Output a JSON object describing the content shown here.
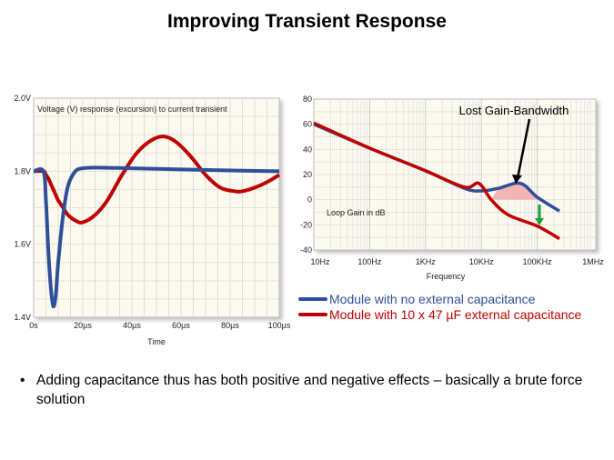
{
  "title": "Improving Transient Response",
  "colors": {
    "blue": "#2f4f9a",
    "red": "#c00000",
    "fill": "#f4b4b4",
    "green": "#1e9e3a",
    "bg": "#fcfaee"
  },
  "chart_data": [
    {
      "type": "line",
      "title": "Voltage (V) response (excursion) to current transient",
      "xlabel": "Time",
      "ylabel": "",
      "xlim": [
        0,
        100
      ],
      "ylim": [
        1.4,
        2.0
      ],
      "grid": true,
      "xticks": [
        "0s",
        "20µs",
        "40µs",
        "60µs",
        "80µs",
        "100µs"
      ],
      "yticks": [
        "1.4V",
        "1.6V",
        "1.8V",
        "2.0V"
      ],
      "x": [
        0,
        4,
        5,
        6,
        7,
        8,
        9,
        10,
        12,
        14,
        17,
        20,
        25,
        40,
        60,
        80,
        100
      ],
      "series": [
        {
          "color": "#2f4f9a",
          "values": [
            1.8,
            1.8,
            1.72,
            1.58,
            1.48,
            1.43,
            1.46,
            1.55,
            1.68,
            1.76,
            1.8,
            1.808,
            1.81,
            1.808,
            1.805,
            1.802,
            1.8
          ]
        },
        {
          "color": "#c00000",
          "values": [
            1.8,
            1.8,
            1.79,
            1.78,
            1.765,
            1.75,
            1.735,
            1.72,
            1.7,
            1.68,
            1.665,
            1.66,
            1.68,
            1.8,
            1.89,
            1.76,
            1.79
          ]
        }
      ],
      "x_extra": {
        "red": [
          25,
          30,
          36,
          42,
          48,
          53,
          58,
          64,
          70,
          76,
          82,
          85,
          90,
          95,
          100
        ],
        "red_values": [
          1.68,
          1.72,
          1.79,
          1.85,
          1.885,
          1.895,
          1.88,
          1.84,
          1.79,
          1.755,
          1.745,
          1.745,
          1.755,
          1.77,
          1.79
        ]
      }
    },
    {
      "type": "line",
      "title": "Lost Gain-Bandwidth",
      "annotation": "Loop Gain in dB",
      "xlabel": "Frequency",
      "xscale": "log",
      "xlim": [
        10,
        1000000
      ],
      "ylim": [
        -40,
        80
      ],
      "grid": true,
      "xticks": [
        "10Hz",
        "100Hz",
        "1KHz",
        "10KHz",
        "100KHz",
        "1MHz"
      ],
      "yticks": [
        "-40",
        "-20",
        "0",
        "20",
        "40",
        "60",
        "80"
      ],
      "series": [
        {
          "name": "Module with no external capacitance",
          "color": "#2f4f9a",
          "x": [
            10,
            100,
            1000,
            5000,
            10000,
            20000,
            50000,
            100000,
            250000
          ],
          "values": [
            60,
            41,
            23,
            9,
            7,
            9,
            13,
            2,
            -9
          ]
        },
        {
          "name": "Module with 10 x 47 µF external capacitance",
          "color": "#c00000",
          "x": [
            10,
            100,
            1000,
            5000,
            9000,
            15000,
            30000,
            100000,
            250000
          ],
          "values": [
            61,
            41,
            23,
            10,
            13,
            0,
            -12,
            -21,
            -31
          ]
        }
      ]
    }
  ],
  "bullet": "Adding capacitance thus has both positive and negative effects – basically a brute force solution"
}
